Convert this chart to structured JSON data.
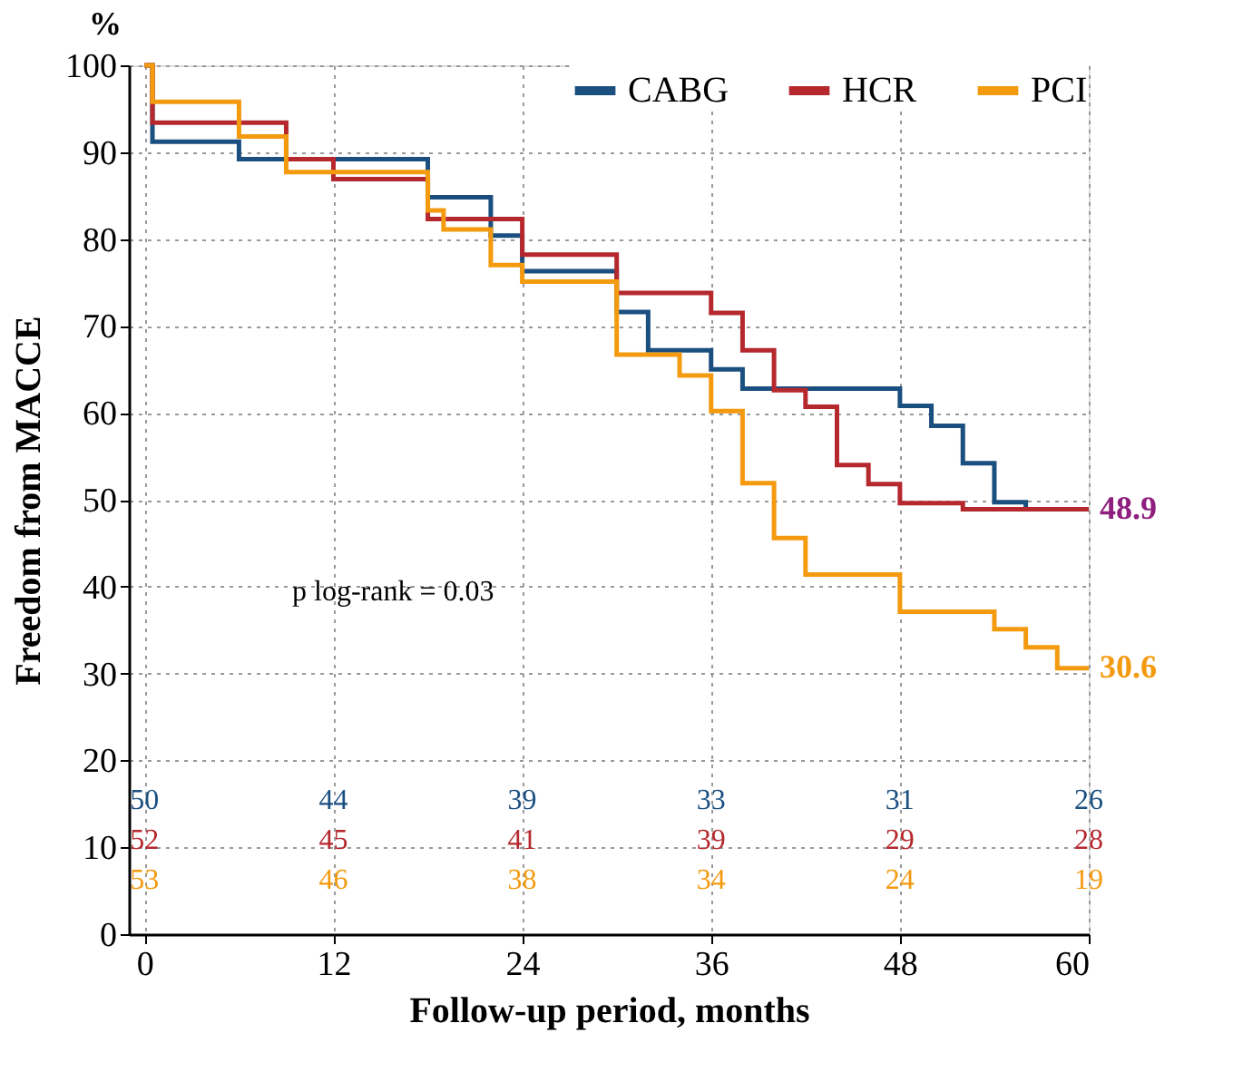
{
  "chart_data": {
    "type": "step",
    "xlabel": "Follow-up period, months",
    "ylabel": "Freedom from MACCE",
    "xlim": [
      -1,
      60
    ],
    "xticks": [
      0,
      12,
      24,
      36,
      48,
      60
    ],
    "ylim": [
      0,
      100
    ],
    "yticks": [
      0,
      10,
      20,
      30,
      40,
      50,
      60,
      70,
      80,
      90,
      100
    ],
    "grid": true,
    "legend": "top right",
    "line_style": "solid",
    "marker": "none",
    "series": [
      {
        "name": "CABG",
        "color": "#1a4f80",
        "x": [
          0,
          0.5,
          6,
          18,
          22,
          24,
          30,
          32,
          36,
          38,
          48,
          50,
          52,
          54,
          56,
          60
        ],
        "values": [
          100,
          91.2,
          89.2,
          84.8,
          80.4,
          76.3,
          71.6,
          67.2,
          65.0,
          62.8,
          60.8,
          58.5,
          54.2,
          49.7,
          48.9,
          48.9
        ]
      },
      {
        "name": "HCR",
        "color": "#b5282e",
        "x": [
          0,
          0.5,
          9,
          12,
          18,
          24,
          30,
          36,
          38,
          40,
          42,
          44,
          46,
          48,
          52,
          60
        ],
        "values": [
          100,
          93.4,
          89.2,
          86.9,
          82.3,
          78.2,
          73.8,
          71.5,
          67.2,
          62.6,
          60.7,
          54.0,
          51.8,
          49.6,
          48.9,
          48.9
        ]
      },
      {
        "name": "PCI",
        "color": "#f39a0f",
        "x": [
          0,
          0.5,
          6,
          9,
          18,
          19,
          22,
          24,
          30,
          34,
          36,
          38,
          40,
          42,
          48,
          54,
          56,
          58,
          60
        ],
        "values": [
          100,
          95.8,
          91.8,
          87.7,
          83.3,
          81.1,
          77.0,
          75.1,
          66.7,
          64.3,
          60.2,
          51.9,
          45.6,
          41.4,
          37.1,
          35.1,
          33.0,
          30.6,
          30.6
        ]
      }
    ],
    "annotations": [
      "%",
      "p log-rank = 0.03",
      {
        "text": "48.9",
        "x": 60,
        "y": 48.9
      },
      {
        "text": "30.6",
        "x": 60,
        "y": 30.6
      },
      "50",
      "44",
      "39",
      "33",
      "31",
      "26",
      "52",
      "45",
      "41",
      "39",
      "29",
      "28",
      "53",
      "46",
      "38",
      "34",
      "24",
      "19"
    ]
  }
}
